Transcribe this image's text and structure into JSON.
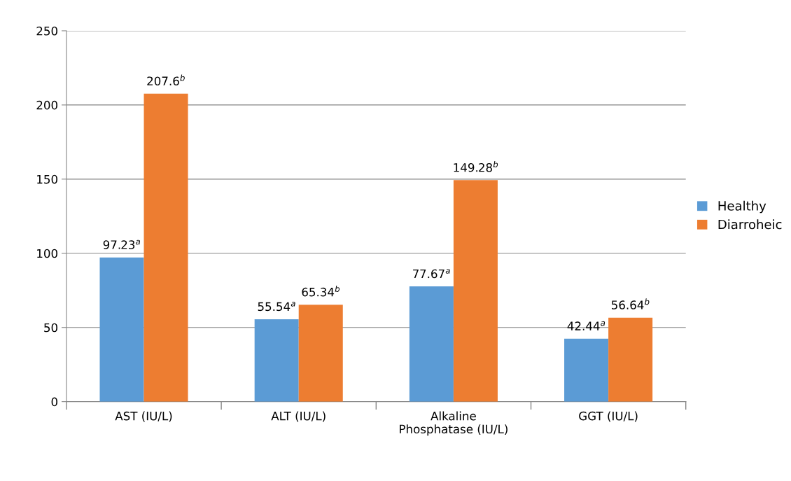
{
  "chart_data": {
    "type": "bar",
    "categories": [
      "AST (IU/L)",
      "ALT (IU/L)",
      "Alkaline\nPhosphatase (IU/L)",
      "GGT (IU/L)"
    ],
    "series": [
      {
        "name": "Healthy",
        "color": "#5b9bd5",
        "values": [
          97.23,
          55.54,
          77.67,
          42.44
        ],
        "value_labels": [
          "97.23$^{a}$",
          "55.54$^{a}$",
          "77.67$^{a}$",
          "42.44$^{a}$"
        ]
      },
      {
        "name": "Diarroheic",
        "color": "#ed7d31",
        "values": [
          207.6,
          65.34,
          149.28,
          56.64
        ],
        "value_labels": [
          "207.6$^{b}$",
          "65.34$^{b}$",
          "149.28$^{b}$",
          "56.64$^{b}$"
        ]
      }
    ],
    "ylim": [
      0,
      250
    ],
    "yticks": [
      0,
      50,
      100,
      150,
      200,
      250
    ],
    "grid": "y",
    "legend": "right"
  }
}
